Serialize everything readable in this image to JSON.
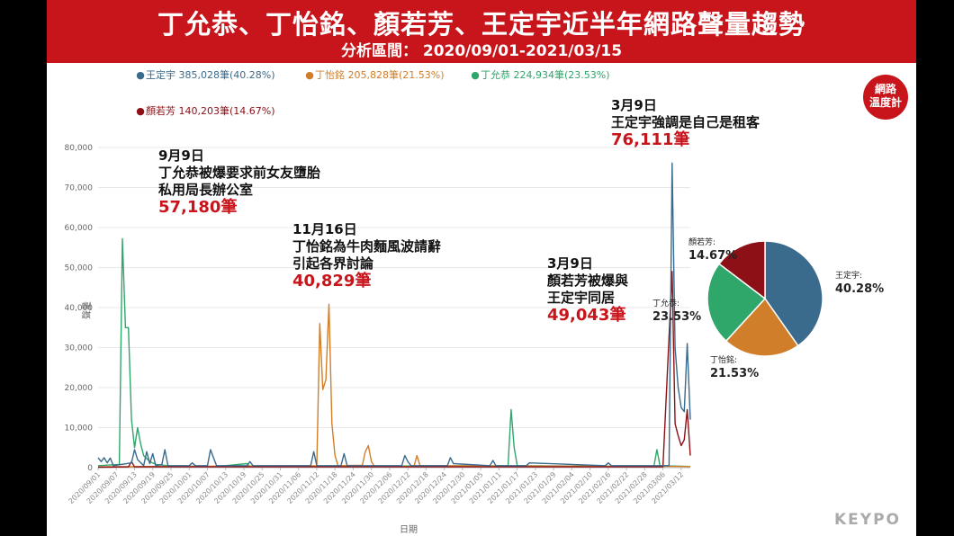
{
  "header": {
    "title": "丁允恭、丁怡銘、顏若芳、王定宇近半年網路聲量趨勢",
    "subtitle": "分析區間： 2020/09/01-2021/03/15"
  },
  "legend": [
    {
      "label": "王定宇 385,028筆(40.28%)",
      "color": "#3a6a8c"
    },
    {
      "label": "丁怡銘 205,828筆(21.53%)",
      "color": "#d17e2a"
    },
    {
      "label": "丁允恭 224,934筆(23.53%)",
      "color": "#2fa66a"
    },
    {
      "label": "顏若芳 140,203筆(14.67%)",
      "color": "#8c1015"
    }
  ],
  "logo": {
    "line1": "網路",
    "line2": "溫度計"
  },
  "brand": "KEYPO",
  "annotations": [
    {
      "lines": [
        "9月9日",
        "丁允恭被爆要求前女友墮胎",
        "私用局長辦公室"
      ],
      "value": "57,180筆"
    },
    {
      "lines": [
        "11月16日",
        "丁怡銘為牛肉麵風波請辭",
        "引起各界討論"
      ],
      "value": "40,829筆"
    },
    {
      "lines": [
        "3月9日",
        "顏若芳被爆與",
        "王定宇同居"
      ],
      "value": "49,043筆"
    },
    {
      "lines": [
        "3月9日",
        "王定宇強調是自己是租客"
      ],
      "value": "76,111筆"
    }
  ],
  "chart_data": [
    {
      "type": "line",
      "xlabel": "日期",
      "ylabel": "聲量",
      "ylim": [
        0,
        80000
      ],
      "yticks": [
        "0",
        "10,000",
        "20,000",
        "30,000",
        "40,000",
        "50,000",
        "60,000",
        "70,000",
        "80,000"
      ],
      "x_start": "2020/09/01",
      "x_end": "2021/03/15",
      "xticks": [
        "2020/09/01",
        "2020/09/07",
        "2020/09/13",
        "2020/09/19",
        "2020/09/25",
        "2020/10/01",
        "2020/10/07",
        "2020/10/13",
        "2020/10/19",
        "2020/10/25",
        "2020/10/31",
        "2020/11/06",
        "2020/11/12",
        "2020/11/18",
        "2020/11/24",
        "2020/11/30",
        "2020/12/06",
        "2020/12/12",
        "2020/12/18",
        "2020/12/24",
        "2020/12/30",
        "2021/01/05",
        "2021/01/11",
        "2021/01/17",
        "2021/01/23",
        "2021/01/29",
        "2021/02/04",
        "2021/02/10",
        "2021/02/16",
        "2021/02/22",
        "2021/02/28",
        "2021/03/06",
        "2021/03/12"
      ],
      "series": [
        {
          "name": "丁允恭",
          "color": "#2fa66a",
          "points": [
            [
              "2020/09/01",
              500
            ],
            [
              "2020/09/08",
              800
            ],
            [
              "2020/09/09",
              57180
            ],
            [
              "2020/09/10",
              35000
            ],
            [
              "2020/09/11",
              35000
            ],
            [
              "2020/09/12",
              12000
            ],
            [
              "2020/09/13",
              5000
            ],
            [
              "2020/09/14",
              10000
            ],
            [
              "2020/09/15",
              6000
            ],
            [
              "2020/09/16",
              3000
            ],
            [
              "2020/09/18",
              1500
            ],
            [
              "2020/09/20",
              800
            ],
            [
              "2020/09/25",
              400
            ],
            [
              "2020/10/10",
              300
            ],
            [
              "2020/10/20",
              1000
            ],
            [
              "2020/10/21",
              300
            ],
            [
              "2021/01/14",
              500
            ],
            [
              "2021/01/15",
              14500
            ],
            [
              "2021/01/16",
              5000
            ],
            [
              "2021/01/17",
              500
            ],
            [
              "2021/03/03",
              300
            ],
            [
              "2021/03/04",
              4500
            ],
            [
              "2021/03/05",
              500
            ],
            [
              "2021/03/15",
              300
            ]
          ]
        },
        {
          "name": "丁怡銘",
          "color": "#d17e2a",
          "points": [
            [
              "2020/09/01",
              200
            ],
            [
              "2020/11/12",
              500
            ],
            [
              "2020/11/13",
              36000
            ],
            [
              "2020/11/14",
              19500
            ],
            [
              "2020/11/15",
              22000
            ],
            [
              "2020/11/16",
              40829
            ],
            [
              "2020/11/17",
              11000
            ],
            [
              "2020/11/18",
              3000
            ],
            [
              "2020/11/19",
              500
            ],
            [
              "2020/11/27",
              600
            ],
            [
              "2020/11/28",
              4000
            ],
            [
              "2020/11/29",
              5500
            ],
            [
              "2020/11/30",
              1500
            ],
            [
              "2020/12/01",
              300
            ],
            [
              "2020/12/14",
              300
            ],
            [
              "2020/12/15",
              3000
            ],
            [
              "2020/12/16",
              500
            ],
            [
              "2021/03/15",
              300
            ]
          ]
        },
        {
          "name": "顏若芳",
          "color": "#8c1015",
          "points": [
            [
              "2020/09/01",
              100
            ],
            [
              "2020/09/11",
              200
            ],
            [
              "2020/09/12",
              1500
            ],
            [
              "2020/09/13",
              200
            ],
            [
              "2021/03/06",
              200
            ],
            [
              "2021/03/09",
              49043
            ],
            [
              "2021/03/10",
              11000
            ],
            [
              "2021/03/11",
              8000
            ],
            [
              "2021/03/12",
              5500
            ],
            [
              "2021/03/13",
              7000
            ],
            [
              "2021/03/14",
              14500
            ],
            [
              "2021/03/15",
              3000
            ]
          ]
        },
        {
          "name": "王定宇",
          "color": "#3a6a8c",
          "points": [
            [
              "2020/09/01",
              2500
            ],
            [
              "2020/09/02",
              1500
            ],
            [
              "2020/09/03",
              2500
            ],
            [
              "2020/09/04",
              1200
            ],
            [
              "2020/09/05",
              2400
            ],
            [
              "2020/09/06",
              500
            ],
            [
              "2020/09/12",
              1200
            ],
            [
              "2020/09/13",
              4500
            ],
            [
              "2020/09/14",
              2000
            ],
            [
              "2020/09/16",
              500
            ],
            [
              "2020/09/17",
              4000
            ],
            [
              "2020/09/18",
              1000
            ],
            [
              "2020/09/19",
              3500
            ],
            [
              "2020/09/20",
              500
            ],
            [
              "2020/09/22",
              800
            ],
            [
              "2020/09/23",
              4500
            ],
            [
              "2020/09/24",
              500
            ],
            [
              "2020/10/01",
              500
            ],
            [
              "2020/10/02",
              1200
            ],
            [
              "2020/10/03",
              500
            ],
            [
              "2020/10/07",
              500
            ],
            [
              "2020/10/08",
              4500
            ],
            [
              "2020/10/09",
              2500
            ],
            [
              "2020/10/10",
              500
            ],
            [
              "2020/10/20",
              500
            ],
            [
              "2020/10/21",
              1500
            ],
            [
              "2020/10/22",
              500
            ],
            [
              "2020/11/10",
              500
            ],
            [
              "2020/11/11",
              4000
            ],
            [
              "2020/11/12",
              500
            ],
            [
              "2020/11/20",
              500
            ],
            [
              "2020/11/21",
              3500
            ],
            [
              "2020/11/22",
              500
            ],
            [
              "2020/12/10",
              500
            ],
            [
              "2020/12/11",
              3000
            ],
            [
              "2020/12/12",
              1500
            ],
            [
              "2020/12/13",
              500
            ],
            [
              "2020/12/25",
              500
            ],
            [
              "2020/12/26",
              2500
            ],
            [
              "2020/12/27",
              1000
            ],
            [
              "2021/01/08",
              500
            ],
            [
              "2021/01/09",
              1800
            ],
            [
              "2021/01/10",
              500
            ],
            [
              "2021/01/20",
              500
            ],
            [
              "2021/01/21",
              1200
            ],
            [
              "2021/02/15",
              500
            ],
            [
              "2021/02/16",
              1200
            ],
            [
              "2021/02/17",
              500
            ],
            [
              "2021/03/08",
              500
            ],
            [
              "2021/03/09",
              76111
            ],
            [
              "2021/03/10",
              30000
            ],
            [
              "2021/03/11",
              20000
            ],
            [
              "2021/03/12",
              15000
            ],
            [
              "2021/03/13",
              14000
            ],
            [
              "2021/03/14",
              31000
            ],
            [
              "2021/03/15",
              12000
            ]
          ]
        }
      ]
    },
    {
      "type": "pie",
      "slices": [
        {
          "name": "王定宇",
          "label_name": "王定宇:",
          "value": 40.28,
          "label_value": "40.28%",
          "color": "#3a6a8c"
        },
        {
          "name": "丁怡銘",
          "label_name": "丁怡銘:",
          "value": 21.53,
          "label_value": "21.53%",
          "color": "#d17e2a"
        },
        {
          "name": "丁允恭",
          "label_name": "丁允恭:",
          "value": 23.53,
          "label_value": "23.53%",
          "color": "#2fa66a"
        },
        {
          "name": "顏若芳",
          "label_name": "顏若芳:",
          "value": 14.67,
          "label_value": "14.67%",
          "color": "#8c1015"
        }
      ]
    }
  ]
}
